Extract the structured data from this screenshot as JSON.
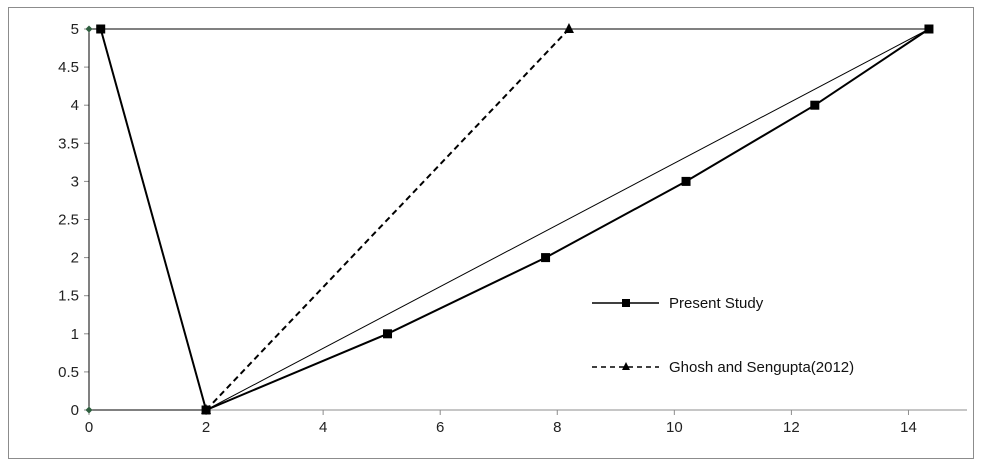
{
  "chart_data": {
    "type": "line",
    "title": "",
    "xlabel": "",
    "ylabel": "",
    "xlim": [
      0,
      15
    ],
    "ylim": [
      0,
      5
    ],
    "x_ticks": [
      0,
      2,
      4,
      6,
      8,
      10,
      12,
      14
    ],
    "y_ticks": [
      0,
      0.5,
      1,
      1.5,
      2,
      2.5,
      3,
      3.5,
      4,
      4.5,
      5
    ],
    "grid": false,
    "legend_position": "right",
    "series": [
      {
        "name": "Present Study",
        "style": "solid",
        "marker": "square",
        "color": "#000000",
        "points": [
          [
            0.2,
            5
          ],
          [
            2,
            0
          ],
          [
            5.1,
            1
          ],
          [
            7.8,
            2
          ],
          [
            10.2,
            3
          ],
          [
            12.4,
            4
          ],
          [
            14.35,
            5
          ]
        ]
      },
      {
        "name": "Ghosh and Sengupta(2012)",
        "style": "dashed",
        "marker": "triangle",
        "color": "#000000",
        "points": [
          [
            2,
            0
          ],
          [
            8.2,
            5
          ]
        ]
      },
      {
        "name": "",
        "style": "solid",
        "marker": "diamond",
        "color": "#2e5e3e",
        "points": [
          [
            0,
            0
          ],
          [
            2,
            0
          ],
          [
            14.35,
            5
          ],
          [
            0,
            5
          ]
        ]
      }
    ]
  }
}
